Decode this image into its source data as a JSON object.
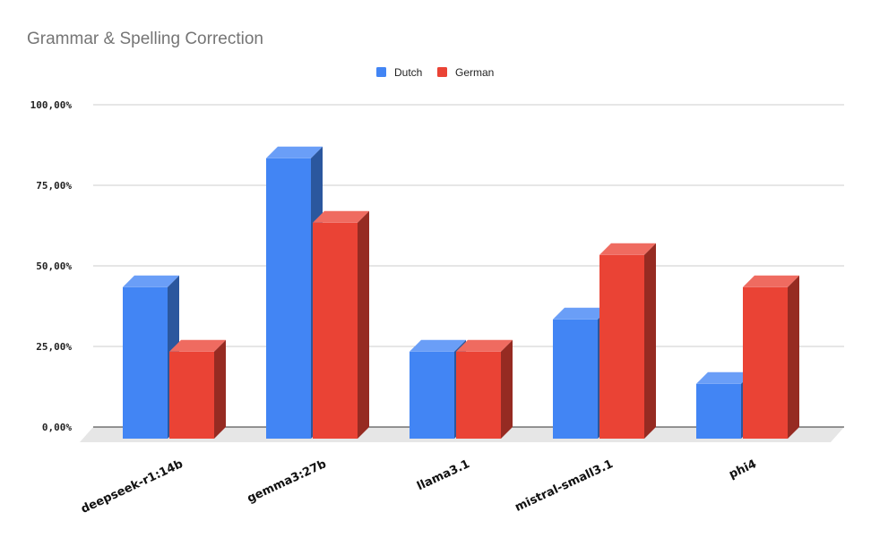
{
  "chart_data": {
    "type": "bar",
    "title": "Grammar & Spelling Correction",
    "categories": [
      "deepseek-r1:14b",
      "gemma3:27b",
      "llama3.1",
      "mistral-small3.1",
      "phi4"
    ],
    "series": [
      {
        "name": "Dutch",
        "values": [
          0.47,
          0.87,
          0.27,
          0.37,
          0.17
        ]
      },
      {
        "name": "German",
        "values": [
          0.27,
          0.67,
          0.27,
          0.57,
          0.47
        ]
      }
    ],
    "ylim": [
      0,
      1
    ],
    "yticks": [
      "0,00%",
      "25,00%",
      "50,00%",
      "75,00%",
      "100,00%"
    ],
    "xlabel": "",
    "ylabel": "",
    "legend_position": "top-center",
    "grid": true,
    "style": "3d-bar",
    "colors": {
      "Dutch": {
        "front": "#4285f4",
        "top": "#6a9ef7",
        "side": "#2b579e"
      },
      "German": {
        "front": "#ea4335",
        "top": "#ef6b60",
        "side": "#962b22"
      },
      "floor": "#e6e6e6",
      "grid": "#cccccc",
      "baseline": "#333333"
    }
  }
}
